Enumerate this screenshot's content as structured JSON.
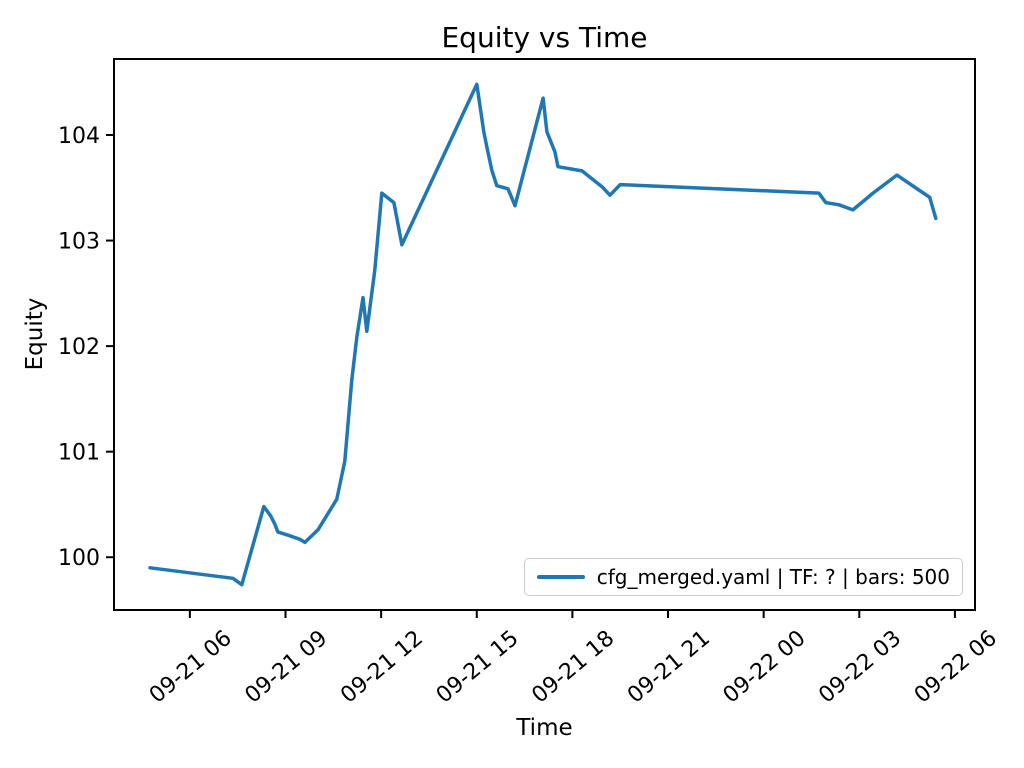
{
  "chart_data": {
    "type": "line",
    "title": "Equity vs Time",
    "xlabel": "Time",
    "ylabel": "Equity",
    "background": "#ffffff",
    "grid": false,
    "axis_color": "#000000",
    "legend_position": "lower right",
    "x_axis_note": "x expressed as hours offset from 09-21 00 (derived from tick labels)",
    "xlim_hours": [
      3.62,
      30.63
    ],
    "ylim": [
      99.5,
      104.72
    ],
    "x_ticks": [
      {
        "hours": 6,
        "label": "09-21 06"
      },
      {
        "hours": 9,
        "label": "09-21 09"
      },
      {
        "hours": 12,
        "label": "09-21 12"
      },
      {
        "hours": 15,
        "label": "09-21 15"
      },
      {
        "hours": 18,
        "label": "09-21 18"
      },
      {
        "hours": 21,
        "label": "09-21 21"
      },
      {
        "hours": 24,
        "label": "09-22 00"
      },
      {
        "hours": 27,
        "label": "09-22 03"
      },
      {
        "hours": 30,
        "label": "09-22 06"
      }
    ],
    "y_ticks": [
      100,
      101,
      102,
      103,
      104
    ],
    "series": [
      {
        "name": "cfg_merged.yaml | TF: ? | bars: 500",
        "color": "#1f77b4",
        "points": [
          [
            4.75,
            99.9
          ],
          [
            7.35,
            99.8
          ],
          [
            7.63,
            99.74
          ],
          [
            8.32,
            100.48
          ],
          [
            8.54,
            100.39
          ],
          [
            8.67,
            100.31
          ],
          [
            8.76,
            100.24
          ],
          [
            9.07,
            100.21
          ],
          [
            9.45,
            100.17
          ],
          [
            9.61,
            100.14
          ],
          [
            10.02,
            100.26
          ],
          [
            10.61,
            100.55
          ],
          [
            10.86,
            100.91
          ],
          [
            11.08,
            101.68
          ],
          [
            11.24,
            102.09
          ],
          [
            11.43,
            102.46
          ],
          [
            11.55,
            102.14
          ],
          [
            11.8,
            102.72
          ],
          [
            12.02,
            103.45
          ],
          [
            12.4,
            103.36
          ],
          [
            12.65,
            102.96
          ],
          [
            15.0,
            104.48
          ],
          [
            15.22,
            104.03
          ],
          [
            15.32,
            103.88
          ],
          [
            15.47,
            103.67
          ],
          [
            15.63,
            103.52
          ],
          [
            15.98,
            103.49
          ],
          [
            16.2,
            103.33
          ],
          [
            17.08,
            104.35
          ],
          [
            17.2,
            104.03
          ],
          [
            17.45,
            103.84
          ],
          [
            17.55,
            103.7
          ],
          [
            18.3,
            103.66
          ],
          [
            18.93,
            103.51
          ],
          [
            19.18,
            103.43
          ],
          [
            19.5,
            103.53
          ],
          [
            25.73,
            103.45
          ],
          [
            25.95,
            103.36
          ],
          [
            26.35,
            103.34
          ],
          [
            26.8,
            103.29
          ],
          [
            27.43,
            103.45
          ],
          [
            28.18,
            103.62
          ],
          [
            28.96,
            103.46
          ],
          [
            29.21,
            103.41
          ],
          [
            29.4,
            103.21
          ]
        ]
      }
    ]
  }
}
